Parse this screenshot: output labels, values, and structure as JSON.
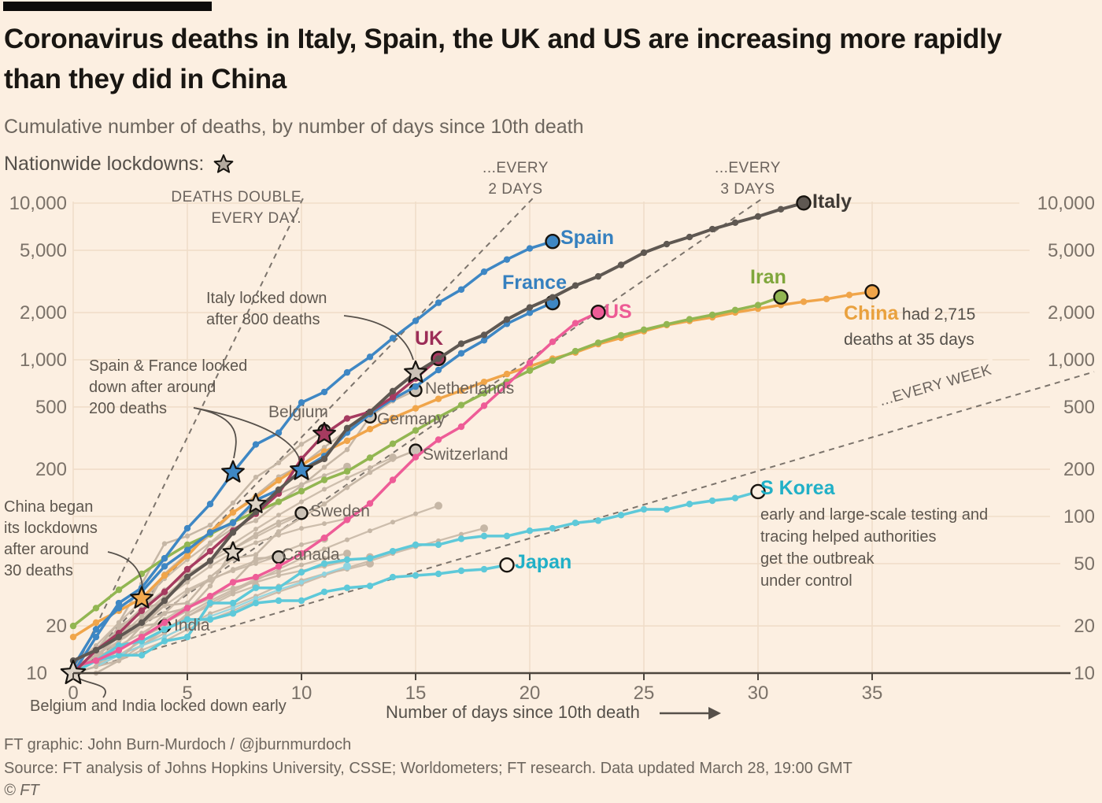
{
  "header": {
    "title": "Coronavirus deaths in Italy, Spain, the UK and US are increasing more rapidly than they did in China",
    "subtitle": "Cumulative number of deaths, by number of days since 10th death",
    "legend_label": "Nationwide lockdowns:",
    "legend_icon": "lockdown-star"
  },
  "chart_data": {
    "type": "line",
    "x_axis": {
      "label": "Number of days since 10th death",
      "ticks": [
        0,
        5,
        10,
        15,
        20,
        25,
        30,
        35
      ],
      "range": [
        0,
        41
      ]
    },
    "y_axis": {
      "scale": "log",
      "range": [
        10,
        10000
      ],
      "ticks": [
        10,
        20,
        50,
        100,
        200,
        500,
        1000,
        2000,
        5000,
        10000
      ],
      "tick_labels": [
        "10",
        "20",
        "50",
        "100",
        "200",
        "500",
        "1,000",
        "2,000",
        "5,000",
        "10,000"
      ],
      "left_side_values": [
        10,
        20,
        200,
        500,
        1000,
        2000,
        5000,
        10000
      ]
    },
    "grid": true,
    "colors": {
      "background": "#fcefe1",
      "gridline": "#f0ddc9",
      "axis": "#4d463e",
      "tick_text": "#7b7269",
      "dashed_reference": "#7c746c",
      "background_line": "#c6b7a6",
      "star_light_fill": "#ddd3c6"
    },
    "reference_lines": [
      {
        "doubling_days": 1,
        "label_lines": [
          "DEATHS DOUBLE",
          "EVERY DAY."
        ]
      },
      {
        "doubling_days": 2,
        "label_lines": [
          "...EVERY",
          "2 DAYS"
        ]
      },
      {
        "doubling_days": 3,
        "label_lines": [
          "...EVERY",
          "3 DAYS"
        ]
      },
      {
        "doubling_days": 7,
        "label_lines": [
          "...EVERY WEEK"
        ]
      }
    ],
    "series": [
      {
        "name": "Netherlands",
        "group": "gray",
        "color": "#c6b7a6",
        "label_color": "#6b635b",
        "endpoint_fill": "#cbc2b6",
        "values": [
          10,
          12,
          20,
          24,
          43,
          58,
          76,
          106,
          136,
          179,
          213,
          276,
          356,
          434,
          546,
          639
        ]
      },
      {
        "name": "Belgium",
        "group": "gray",
        "color": "#c6b7a6",
        "label_color": "#6b635b",
        "endpoint_fill": "#cbc2b6",
        "lockdown_day": 0,
        "star_fill": "#ddd3c6",
        "star_r": 16,
        "values": [
          10,
          14,
          21,
          37,
          67,
          75,
          88,
          122,
          178,
          220,
          289,
          353
        ]
      },
      {
        "name": "Germany",
        "group": "gray",
        "color": "#c6b7a6",
        "label_color": "#6b635b",
        "endpoint_fill": "#cbc2b6",
        "values": [
          11,
          13,
          17,
          26,
          28,
          44,
          67,
          84,
          94,
          123,
          157,
          206,
          267,
          433
        ]
      },
      {
        "name": "Switzerland",
        "group": "gray",
        "color": "#c6b7a6",
        "label_color": "#6b635b",
        "endpoint_fill": "#cbc2b6",
        "values": [
          11,
          13,
          14,
          20,
          27,
          28,
          41,
          54,
          57,
          80,
          98,
          120,
          153,
          191,
          231,
          264
        ]
      },
      {
        "name": "Sweden",
        "group": "gray",
        "color": "#c6b7a6",
        "label_color": "#6b635b",
        "endpoint_fill": "#cbc2b6",
        "values": [
          10,
          11,
          16,
          20,
          21,
          25,
          36,
          62,
          77,
          92,
          105
        ]
      },
      {
        "name": "Canada",
        "group": "gray",
        "color": "#c6b7a6",
        "label_color": "#6b635b",
        "endpoint_fill": "#cbc2b6",
        "values": [
          10,
          12,
          19,
          21,
          24,
          26,
          30,
          38,
          54,
          55
        ]
      },
      {
        "name": "India",
        "group": "gray",
        "color": "#c6b7a6",
        "label_color": "#6b635b",
        "endpoint_fill": "#cbc2b6",
        "values": [
          10,
          10,
          12,
          17,
          20
        ]
      },
      {
        "name": "China",
        "group": "main",
        "color": "#f0a54a",
        "label_color": "#e9a13e",
        "endpoint_fill": "#f0a54a",
        "lockdown_day": 3,
        "star_fill": "#f2a94e",
        "values": [
          17,
          21,
          25,
          30,
          42,
          56,
          80,
          106,
          132,
          170,
          213,
          259,
          304,
          361,
          425,
          490,
          563,
          636,
          722,
          811,
          908,
          1016,
          1113,
          1259,
          1380,
          1523,
          1665,
          1770,
          1868,
          2004,
          2118,
          2236,
          2345,
          2442,
          2592,
          2715
        ]
      },
      {
        "name": "Iran",
        "group": "main",
        "color": "#92b652",
        "label_color": "#7fa63c",
        "endpoint_fill": "#92b652",
        "values": [
          20,
          26,
          34,
          43,
          54,
          66,
          77,
          92,
          107,
          124,
          145,
          171,
          194,
          237,
          291,
          354,
          429,
          514,
          611,
          724,
          853,
          988,
          1135,
          1284,
          1433,
          1556,
          1685,
          1812,
          1934,
          2077,
          2234,
          2517
        ]
      },
      {
        "name": "S Korea",
        "group": "main",
        "color": "#5ec9d9",
        "label_color": "#21b0c7",
        "endpoint_fill": "#fcefe1",
        "values": [
          11,
          12,
          13,
          13,
          16,
          17,
          28,
          28,
          35,
          35,
          44,
          50,
          53,
          54,
          60,
          66,
          66,
          72,
          75,
          75,
          81,
          84,
          91,
          94,
          102,
          111,
          111,
          120,
          126,
          131,
          144
        ]
      },
      {
        "name": "Japan",
        "group": "main",
        "color": "#5ec9d9",
        "label_color": "#21b0c7",
        "endpoint_fill": "#fcefe1",
        "values": [
          10,
          12,
          15,
          16,
          19,
          22,
          22,
          24,
          28,
          29,
          29,
          33,
          35,
          36,
          41,
          42,
          43,
          45,
          46,
          49
        ]
      },
      {
        "name": "US",
        "group": "main",
        "color": "#ee5c97",
        "label_color": "#ed5b95",
        "endpoint_fill": "#ee5c97",
        "values": [
          11,
          12,
          14,
          17,
          21,
          26,
          31,
          38,
          41,
          48,
          58,
          73,
          95,
          121,
          171,
          239,
          309,
          374,
          509,
          690,
          957,
          1302,
          1711,
          2010
        ]
      },
      {
        "name": "France",
        "group": "main",
        "color": "#3e87c4",
        "label_color": "#3680bf",
        "endpoint_fill": "#3e87c4",
        "lockdown_day": 10,
        "star_fill": "#3e87c4",
        "values": [
          11,
          19,
          26,
          33,
          48,
          61,
          79,
          91,
          127,
          148,
          198,
          243,
          343,
          450,
          562,
          674,
          860,
          1100,
          1331,
          1696,
          1995,
          2314
        ]
      },
      {
        "name": "Spain",
        "group": "main",
        "color": "#3e87c4",
        "label_color": "#3680bf",
        "endpoint_fill": "#3e87c4",
        "lockdown_day": 7,
        "star_fill": "#3e87c4",
        "values": [
          10,
          17,
          28,
          35,
          54,
          84,
          120,
          191,
          288,
          342,
          533,
          623,
          830,
          1043,
          1375,
          1772,
          2311,
          2808,
          3647,
          4365,
          5138,
          5690
        ]
      },
      {
        "name": "UK",
        "group": "main",
        "color": "#a63b60",
        "label_color": "#9c2d57",
        "endpoint_fill": "#a63b60",
        "lockdown_day": 11,
        "star_fill": "#a63b60",
        "values": [
          10,
          14,
          18,
          25,
          33,
          46,
          60,
          81,
          104,
          140,
          233,
          335,
          422,
          465,
          578,
          759,
          1019
        ]
      },
      {
        "name": "Italy",
        "group": "main",
        "color": "#5f5852",
        "label_color": "#3f3a35",
        "endpoint_fill": "#5f5852",
        "lockdown_day": 15,
        "star_fill": "#cbc2b6",
        "values": [
          12,
          14,
          17,
          21,
          29,
          41,
          52,
          79,
          107,
          148,
          197,
          233,
          366,
          463,
          631,
          827,
          1016,
          1266,
          1441,
          1809,
          2158,
          2503,
          2978,
          3405,
          4032,
          4825,
          5476,
          6077,
          6820,
          7503,
          8215,
          9134,
          10023
        ]
      }
    ],
    "background_series": [
      {
        "values": [
          10,
          13,
          16,
          22,
          30,
          38,
          48,
          59,
          68,
          76,
          84,
          90,
          97
        ],
        "lockdown_day": 7
      },
      {
        "values": [
          10,
          11,
          14,
          17,
          24,
          33,
          39,
          46,
          52,
          58,
          66,
          72
        ]
      },
      {
        "values": [
          10,
          12,
          13,
          15,
          18,
          24,
          29,
          34,
          40,
          44,
          49,
          54,
          58
        ]
      },
      {
        "values": [
          10,
          11,
          12,
          15,
          17,
          20,
          24,
          27,
          31,
          36,
          39,
          43,
          46,
          50
        ]
      },
      {
        "values": [
          10,
          12,
          16,
          21,
          27,
          34,
          40,
          45,
          50,
          56
        ]
      },
      {
        "values": [
          10,
          11,
          13,
          15,
          19,
          23,
          27,
          32,
          36
        ]
      },
      {
        "values": [
          10,
          12,
          15,
          18,
          22,
          27,
          31,
          35,
          38,
          42,
          45,
          48,
          52,
          55
        ]
      },
      {
        "values": [
          10,
          14,
          19,
          26,
          34,
          43,
          52,
          62,
          74,
          88,
          103
        ]
      },
      {
        "values": [
          11,
          15,
          21,
          29,
          40,
          53,
          68,
          90,
          120,
          140,
          160,
          182,
          208
        ],
        "lockdown_day": 8
      },
      {
        "values": [
          10,
          13,
          17,
          23,
          31,
          41,
          53,
          67,
          83,
          102,
          124,
          149,
          176,
          205,
          238
        ]
      },
      {
        "values": [
          10,
          11,
          13,
          16,
          19,
          23,
          28,
          33,
          39,
          46,
          54,
          62,
          71,
          81,
          92,
          104,
          117
        ]
      },
      {
        "values": [
          10,
          11,
          12,
          14,
          16,
          19,
          22,
          25,
          29,
          33,
          37,
          42,
          47,
          52,
          58,
          64,
          70,
          77,
          84
        ]
      },
      {
        "values": [
          10,
          11,
          13,
          15,
          17,
          20,
          23,
          26,
          30,
          34,
          38,
          43,
          48
        ],
        "color": "#8ed4e0"
      }
    ],
    "annotations": {
      "deaths_double": {
        "lines": [
          "DEATHS DOUBLE",
          "EVERY DAY."
        ]
      },
      "every_2_days": {
        "lines": [
          "...EVERY",
          "2 DAYS"
        ]
      },
      "every_3_days": {
        "lines": [
          "...EVERY",
          "3 DAYS"
        ]
      },
      "every_week": {
        "text": "...EVERY WEEK"
      },
      "italy_lockdown": {
        "lines": [
          "Italy locked down",
          "after 800 deaths"
        ]
      },
      "spain_france_lockdown": {
        "lines": [
          "Spain & France locked",
          "down after around",
          "200 deaths"
        ]
      },
      "china_lockdown": {
        "lines": [
          "China began",
          "its lockdowns",
          "after around",
          "30 deaths"
        ]
      },
      "belgium_india": {
        "text": "Belgium and India locked down early"
      },
      "s_korea_note": {
        "lines": [
          "early and large-scale testing and",
          "tracing helped authorities",
          "get the outbreak",
          "under control"
        ]
      },
      "china_note": {
        "country": "China",
        "inline_text": "had 2,715",
        "line2": "deaths at 35 days"
      }
    }
  },
  "footer": {
    "credit": "FT graphic: John Burn-Murdoch / @jburnmurdoch",
    "source": "Source: FT analysis of Johns Hopkins University, CSSE; Worldometers; FT research. Data updated March 28, 19:00 GMT",
    "copyright": "© FT"
  }
}
